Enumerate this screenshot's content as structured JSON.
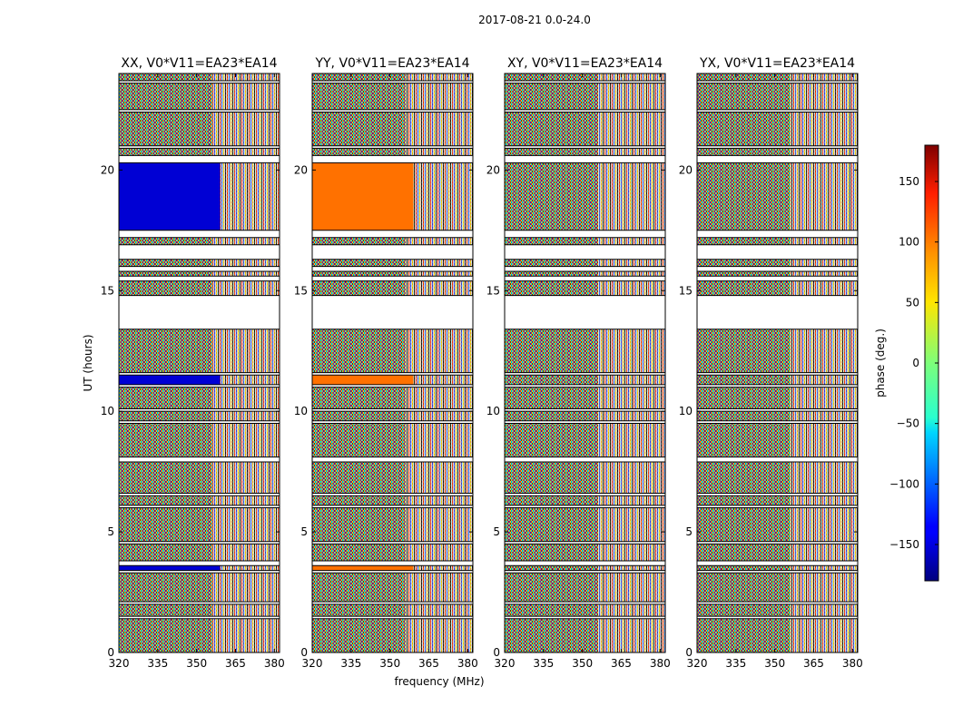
{
  "figure": {
    "suptitle": "2017-08-21 0.0-24.0"
  },
  "chart_data": {
    "type": "heatmap",
    "title": "2017-08-21 0.0-24.0",
    "xlabel": "frequency (MHz)",
    "ylabel": "UT (hours)",
    "xlim": [
      320,
      382
    ],
    "ylim": [
      0,
      24
    ],
    "xticks": [
      320,
      335,
      350,
      365,
      380
    ],
    "yticks": [
      0,
      5,
      10,
      15,
      20
    ],
    "panels": [
      {
        "title": "XX, V0*V11=EA23*EA14",
        "polarization": "XX",
        "calibrated_phase_deg": -150
      },
      {
        "title": "YY, V0*V11=EA23*EA14",
        "polarization": "YY",
        "calibrated_phase_deg": 95
      },
      {
        "title": "XY, V0*V11=EA23*EA14",
        "polarization": "XY",
        "calibrated_phase_deg": null
      },
      {
        "title": "YX, V0*V11=EA23*EA14",
        "polarization": "YX",
        "calibrated_phase_deg": null
      }
    ],
    "data_time_ranges_hours": [
      [
        0.0,
        1.4
      ],
      [
        1.5,
        2.0
      ],
      [
        2.1,
        3.3
      ],
      [
        3.4,
        3.6
      ],
      [
        3.8,
        4.5
      ],
      [
        4.6,
        6.0
      ],
      [
        6.1,
        6.5
      ],
      [
        6.6,
        7.9
      ],
      [
        8.1,
        9.5
      ],
      [
        9.6,
        10.0
      ],
      [
        10.1,
        11.0
      ],
      [
        11.1,
        11.5
      ],
      [
        11.6,
        13.4
      ],
      [
        14.8,
        15.4
      ],
      [
        15.6,
        15.8
      ],
      [
        16.0,
        16.3
      ],
      [
        16.9,
        17.2
      ],
      [
        17.5,
        20.3
      ],
      [
        20.6,
        20.9
      ],
      [
        21.0,
        22.4
      ],
      [
        22.5,
        23.6
      ],
      [
        23.7,
        24.0
      ]
    ],
    "calibration_scan_hours": [
      3.4,
      3.6,
      11.1,
      11.5,
      17.5,
      20.3
    ],
    "colorbar": {
      "label": "phase (deg.)",
      "range": [
        -180,
        180
      ],
      "ticks": [
        150,
        100,
        50,
        0,
        -50,
        -100,
        -150
      ],
      "tick_labels": [
        "150",
        "100",
        "50",
        "0",
        "−50",
        "−100",
        "−150"
      ],
      "colormap": "jet"
    }
  }
}
